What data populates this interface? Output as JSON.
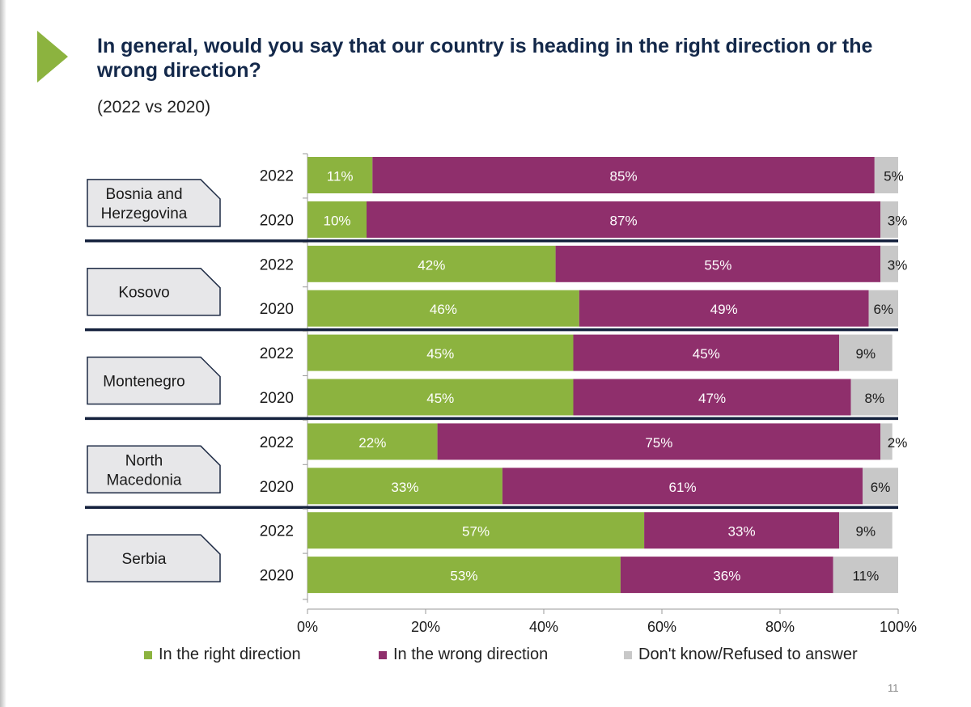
{
  "page": {
    "title": "In general, would you say that our country is heading in the right direction or the wrong direction?",
    "subtitle": "(2022 vs 2020)",
    "page_number": "11"
  },
  "chart_data": {
    "type": "bar",
    "orientation": "horizontal",
    "stacked": true,
    "title": "In general, would you say that our country is heading in the right direction or the wrong direction?",
    "subtitle": "(2022 vs 2020)",
    "xlim": [
      0,
      100
    ],
    "x_ticks": [
      "0%",
      "20%",
      "40%",
      "60%",
      "80%",
      "100%"
    ],
    "legend_position": "bottom",
    "series": [
      {
        "name": "In the right direction",
        "color": "#8cb33f"
      },
      {
        "name": "In the wrong direction",
        "color": "#8f2f6c"
      },
      {
        "name": "Don't know/Refused to answer",
        "color": "#c8c8c8"
      }
    ],
    "groups": [
      {
        "label_lines": [
          "Bosnia and",
          "Herzegovina"
        ],
        "bars": [
          {
            "year": "2022",
            "values": [
              11,
              85,
              5
            ],
            "labels": [
              "11%",
              "85%",
              "5%"
            ]
          },
          {
            "year": "2020",
            "values": [
              10,
              87,
              3
            ],
            "labels": [
              "10%",
              "87%",
              "3%"
            ]
          }
        ]
      },
      {
        "label_lines": [
          "Kosovo"
        ],
        "bars": [
          {
            "year": "2022",
            "values": [
              42,
              55,
              3
            ],
            "labels": [
              "42%",
              "55%",
              "3%"
            ]
          },
          {
            "year": "2020",
            "values": [
              46,
              49,
              6
            ],
            "labels": [
              "46%",
              "49%",
              "6%"
            ]
          }
        ]
      },
      {
        "label_lines": [
          "Montenegro"
        ],
        "bars": [
          {
            "year": "2022",
            "values": [
              45,
              45,
              9
            ],
            "labels": [
              "45%",
              "45%",
              "9%"
            ]
          },
          {
            "year": "2020",
            "values": [
              45,
              47,
              8
            ],
            "labels": [
              "45%",
              "47%",
              "8%"
            ]
          }
        ]
      },
      {
        "label_lines": [
          "North",
          "Macedonia"
        ],
        "bars": [
          {
            "year": "2022",
            "values": [
              22,
              75,
              2
            ],
            "labels": [
              "22%",
              "75%",
              "2%"
            ]
          },
          {
            "year": "2020",
            "values": [
              33,
              61,
              6
            ],
            "labels": [
              "33%",
              "61%",
              "6%"
            ]
          }
        ]
      },
      {
        "label_lines": [
          "Serbia"
        ],
        "bars": [
          {
            "year": "2022",
            "values": [
              57,
              33,
              9
            ],
            "labels": [
              "57%",
              "33%",
              "9%"
            ]
          },
          {
            "year": "2020",
            "values": [
              53,
              36,
              11
            ],
            "labels": [
              "53%",
              "36%",
              "11%"
            ]
          }
        ]
      }
    ]
  }
}
